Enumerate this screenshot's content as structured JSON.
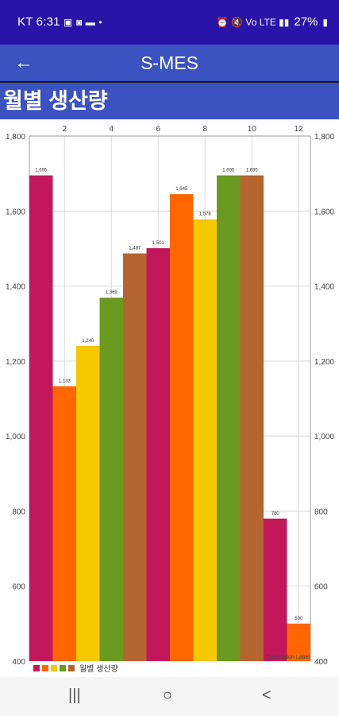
{
  "status_bar": {
    "carrier_time": "KT 6:31",
    "left_icons": [
      "image-icon",
      "messenger-icon",
      "chat-icon"
    ],
    "dot": "•",
    "right_glyphs": "⏰ 🔇 Vo LTE ▮▮",
    "battery": "27%"
  },
  "app_bar": {
    "back_icon": "←",
    "title": "S-MES"
  },
  "section": {
    "title": "월별 생산량"
  },
  "chart_data": {
    "type": "bar",
    "x": [
      1,
      2,
      3,
      4,
      5,
      6,
      7,
      8,
      9,
      10,
      11,
      12
    ],
    "x_ticks": [
      "2",
      "4",
      "6",
      "8",
      "10",
      "12"
    ],
    "values": [
      1695,
      1133,
      1240,
      1369,
      1487,
      1501,
      1645,
      1578,
      1695,
      1695,
      780,
      500
    ],
    "value_labels": [
      "1,695",
      "1,133",
      "1,240",
      "1,369",
      "1,487",
      "1,501",
      "1,645",
      "1,578",
      "1,695",
      "1,695",
      "780",
      "500"
    ],
    "ylim": [
      400,
      1800
    ],
    "y_ticks": [
      400,
      600,
      800,
      1000,
      1200,
      1400,
      1600,
      1800
    ],
    "y_tick_labels": [
      "400",
      "600",
      "800",
      "1,000",
      "1,200",
      "1,400",
      "1,600",
      "1,800"
    ],
    "colors": [
      "#c2185b",
      "#ff6600",
      "#f5c800",
      "#6a9a1f",
      "#b5652f"
    ],
    "legend": {
      "label": "월별 생산량",
      "placement": "bottom-left"
    },
    "description": "Description Label",
    "grid": true
  },
  "nav": {
    "recents": "|||",
    "home": "○",
    "back": "<"
  }
}
